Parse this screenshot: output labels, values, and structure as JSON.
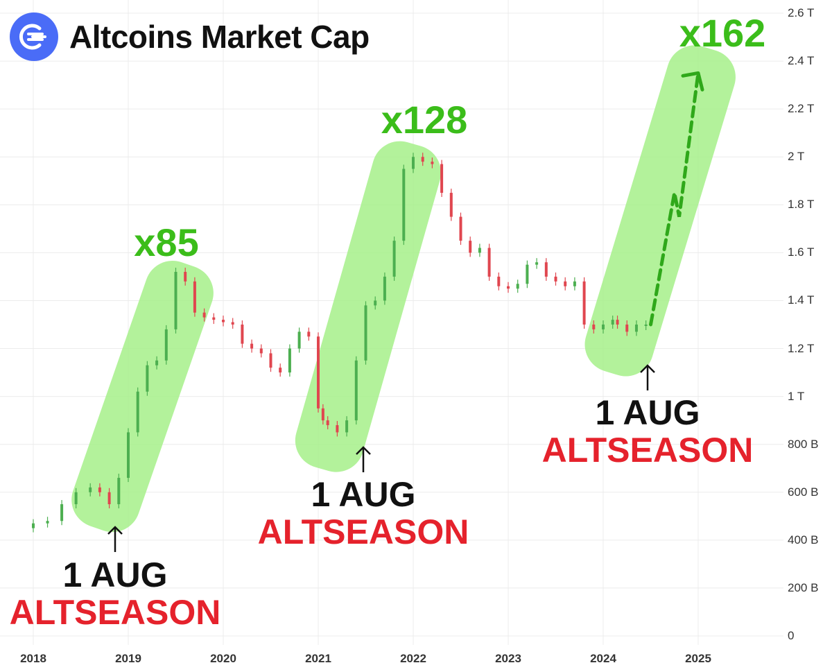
{
  "chart_data": {
    "type": "candlestick",
    "title": "Altcoins Market Cap",
    "y_ticks": [
      "2.6 T",
      "2.4 T",
      "2.2 T",
      "2 T",
      "1.8 T",
      "1.6 T",
      "1.4 T",
      "1.2 T",
      "1 T",
      "800 B",
      "600 B",
      "400 B",
      "200 B",
      "0"
    ],
    "x_ticks": [
      "2018",
      "2019",
      "2020",
      "2021",
      "2022",
      "2023",
      "2024",
      "2025"
    ],
    "ylim": [
      0,
      2.6
    ],
    "y_unit": "T",
    "grid": true,
    "colors": {
      "up": "#4caf50",
      "down": "#e0464f",
      "highlight": "#a6f08a",
      "multiplier": "#3bbd1a",
      "altseason": "#e5222c"
    },
    "series": [
      {
        "x": [
          2017.85,
          2018.0,
          2018.15,
          2018.3,
          2018.45,
          2018.6,
          2018.7,
          2018.8,
          2018.9,
          2019.0,
          2019.1,
          2019.2,
          2019.3,
          2019.4,
          2019.5,
          2019.6,
          2019.7,
          2019.8,
          2019.9,
          2020.0,
          2020.1,
          2020.2,
          2020.3,
          2020.4,
          2020.5,
          2020.6,
          2020.7,
          2020.8,
          2020.9,
          2021.0,
          2021.05,
          2021.1,
          2021.2,
          2021.3,
          2021.4,
          2021.5,
          2021.6,
          2021.7,
          2021.8,
          2021.9,
          2022.0,
          2022.1,
          2022.2,
          2022.3,
          2022.4,
          2022.5,
          2022.6,
          2022.7,
          2022.8,
          2022.9,
          2023.0,
          2023.1,
          2023.2,
          2023.3,
          2023.4,
          2023.5,
          2023.6,
          2023.7,
          2023.8,
          2023.9,
          2024.0,
          2024.1,
          2024.15,
          2024.25,
          2024.35,
          2024.45
        ],
        "values": [
          0.45,
          0.47,
          0.48,
          0.55,
          0.6,
          0.62,
          0.6,
          0.55,
          0.66,
          0.85,
          1.02,
          1.13,
          1.15,
          1.28,
          1.52,
          1.48,
          1.35,
          1.33,
          1.32,
          1.31,
          1.3,
          1.22,
          1.2,
          1.18,
          1.12,
          1.1,
          1.2,
          1.27,
          1.25,
          0.95,
          0.9,
          0.88,
          0.85,
          0.9,
          1.15,
          1.38,
          1.4,
          1.5,
          1.65,
          1.95,
          2.0,
          1.98,
          1.97,
          1.85,
          1.75,
          1.65,
          1.6,
          1.62,
          1.5,
          1.46,
          1.45,
          1.47,
          1.55,
          1.56,
          1.5,
          1.48,
          1.46,
          1.48,
          1.3,
          1.28,
          1.3,
          1.32,
          1.3,
          1.27,
          1.3,
          1.3
        ]
      }
    ],
    "projection": {
      "x": [
        2024.5,
        2024.75,
        2024.8,
        2025.0
      ],
      "values": [
        1.3,
        1.85,
        1.75,
        2.35
      ]
    },
    "multipliers": [
      "x85",
      "x128",
      "x162"
    ],
    "annotations": [
      {
        "date": "1 AUG",
        "label": "ALTSEASON"
      },
      {
        "date": "1 AUG",
        "label": "ALTSEASON"
      },
      {
        "date": "1 AUG",
        "label": "ALTSEASON"
      }
    ]
  }
}
